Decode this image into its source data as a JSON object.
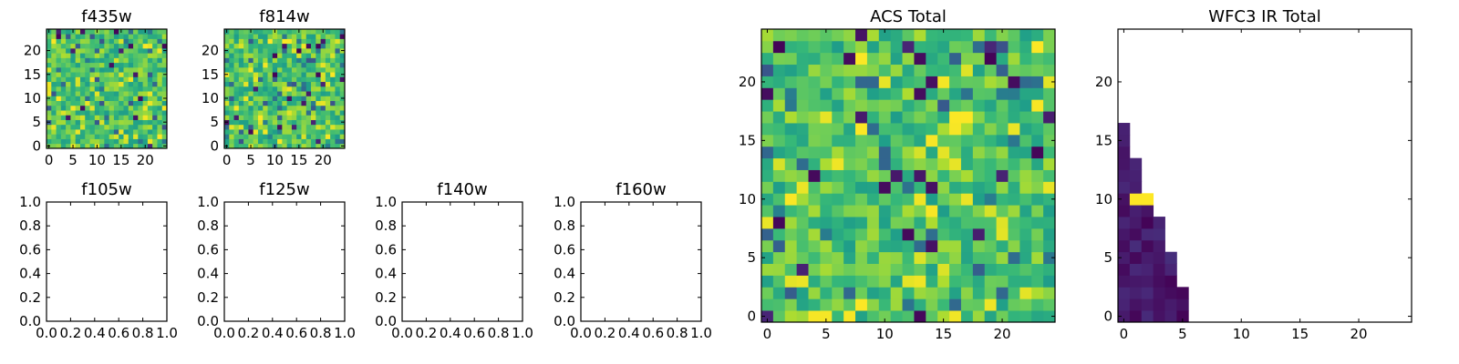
{
  "chart_data": [
    {
      "id": "f435w",
      "type": "heatmap",
      "title": "f435w",
      "grid_size": [
        25,
        25
      ],
      "xlim": [
        -0.5,
        24.5
      ],
      "ylim": [
        -0.5,
        24.5
      ],
      "xticks": [
        0,
        5,
        10,
        15,
        20
      ],
      "yticks": [
        0,
        5,
        10,
        15,
        20
      ],
      "xticklabels": [
        "0",
        "5",
        "10",
        "15",
        "20"
      ],
      "yticklabels": [
        "0",
        "5",
        "10",
        "15",
        "20"
      ],
      "colormap": "viridis",
      "value_range": [
        0,
        1
      ],
      "seed": 435
    },
    {
      "id": "f814w",
      "type": "heatmap",
      "title": "f814w",
      "grid_size": [
        25,
        25
      ],
      "xlim": [
        -0.5,
        24.5
      ],
      "ylim": [
        -0.5,
        24.5
      ],
      "xticks": [
        0,
        5,
        10,
        15,
        20
      ],
      "yticks": [
        0,
        5,
        10,
        15,
        20
      ],
      "xticklabels": [
        "0",
        "5",
        "10",
        "15",
        "20"
      ],
      "yticklabels": [
        "0",
        "5",
        "10",
        "15",
        "20"
      ],
      "colormap": "viridis",
      "value_range": [
        0,
        1
      ],
      "seed": 814
    },
    {
      "id": "f105w",
      "type": "heatmap",
      "title": "f105w",
      "empty": true,
      "xlim": [
        0,
        1
      ],
      "ylim": [
        0,
        1
      ],
      "xticks": [
        0,
        0.2,
        0.4,
        0.6,
        0.8,
        1.0
      ],
      "yticks": [
        0,
        0.2,
        0.4,
        0.6,
        0.8,
        1.0
      ],
      "xticklabels": [
        "0.0",
        "0.2",
        "0.4",
        "0.6",
        "0.8",
        "1.0"
      ],
      "yticklabels": [
        "0.0",
        "0.2",
        "0.4",
        "0.6",
        "0.8",
        "1.0"
      ]
    },
    {
      "id": "f125w",
      "type": "heatmap",
      "title": "f125w",
      "empty": true,
      "xlim": [
        0,
        1
      ],
      "ylim": [
        0,
        1
      ],
      "xticks": [
        0,
        0.2,
        0.4,
        0.6,
        0.8,
        1.0
      ],
      "yticks": [
        0,
        0.2,
        0.4,
        0.6,
        0.8,
        1.0
      ],
      "xticklabels": [
        "0.0",
        "0.2",
        "0.4",
        "0.6",
        "0.8",
        "1.0"
      ],
      "yticklabels": [
        "0.0",
        "0.2",
        "0.4",
        "0.6",
        "0.8",
        "1.0"
      ]
    },
    {
      "id": "f140w",
      "type": "heatmap",
      "title": "f140w",
      "empty": true,
      "xlim": [
        0,
        1
      ],
      "ylim": [
        0,
        1
      ],
      "xticks": [
        0,
        0.2,
        0.4,
        0.6,
        0.8,
        1.0
      ],
      "yticks": [
        0,
        0.2,
        0.4,
        0.6,
        0.8,
        1.0
      ],
      "xticklabels": [
        "0.0",
        "0.2",
        "0.4",
        "0.6",
        "0.8",
        "1.0"
      ],
      "yticklabels": [
        "0.0",
        "0.2",
        "0.4",
        "0.6",
        "0.8",
        "1.0"
      ]
    },
    {
      "id": "f160w",
      "type": "heatmap",
      "title": "f160w",
      "empty": true,
      "xlim": [
        0,
        1
      ],
      "ylim": [
        0,
        1
      ],
      "xticks": [
        0,
        0.2,
        0.4,
        0.6,
        0.8,
        1.0
      ],
      "yticks": [
        0,
        0.2,
        0.4,
        0.6,
        0.8,
        1.0
      ],
      "xticklabels": [
        "0.0",
        "0.2",
        "0.4",
        "0.6",
        "0.8",
        "1.0"
      ],
      "yticklabels": [
        "0.0",
        "0.2",
        "0.4",
        "0.6",
        "0.8",
        "1.0"
      ]
    },
    {
      "id": "acs_total",
      "type": "heatmap",
      "title": "ACS Total",
      "grid_size": [
        25,
        25
      ],
      "xlim": [
        -0.5,
        24.5
      ],
      "ylim": [
        -0.5,
        24.5
      ],
      "xticks": [
        0,
        5,
        10,
        15,
        20
      ],
      "yticks": [
        0,
        5,
        10,
        15,
        20
      ],
      "xticklabels": [
        "0",
        "5",
        "10",
        "15",
        "20"
      ],
      "yticklabels": [
        "0",
        "5",
        "10",
        "15",
        "20"
      ],
      "colormap": "viridis",
      "value_range": [
        0,
        1
      ],
      "seed": 2024
    },
    {
      "id": "wfc3_ir_total",
      "type": "heatmap",
      "title": "WFC3 IR Total",
      "grid_size": [
        25,
        25
      ],
      "xlim": [
        -0.5,
        24.5
      ],
      "ylim": [
        -0.5,
        24.5
      ],
      "xticks": [
        0,
        5,
        10,
        15,
        20
      ],
      "yticks": [
        0,
        5,
        10,
        15,
        20
      ],
      "xticklabels": [
        "0",
        "5",
        "10",
        "15",
        "20"
      ],
      "yticklabels": [
        "0",
        "5",
        "10",
        "15",
        "20"
      ],
      "colormap": "viridis",
      "value_range": [
        0,
        1
      ],
      "column_heights": [
        17,
        14,
        11,
        9,
        6,
        3
      ],
      "highlight_cells": [
        [
          1,
          10,
          1.0
        ],
        [
          2,
          10,
          1.0
        ]
      ]
    }
  ]
}
